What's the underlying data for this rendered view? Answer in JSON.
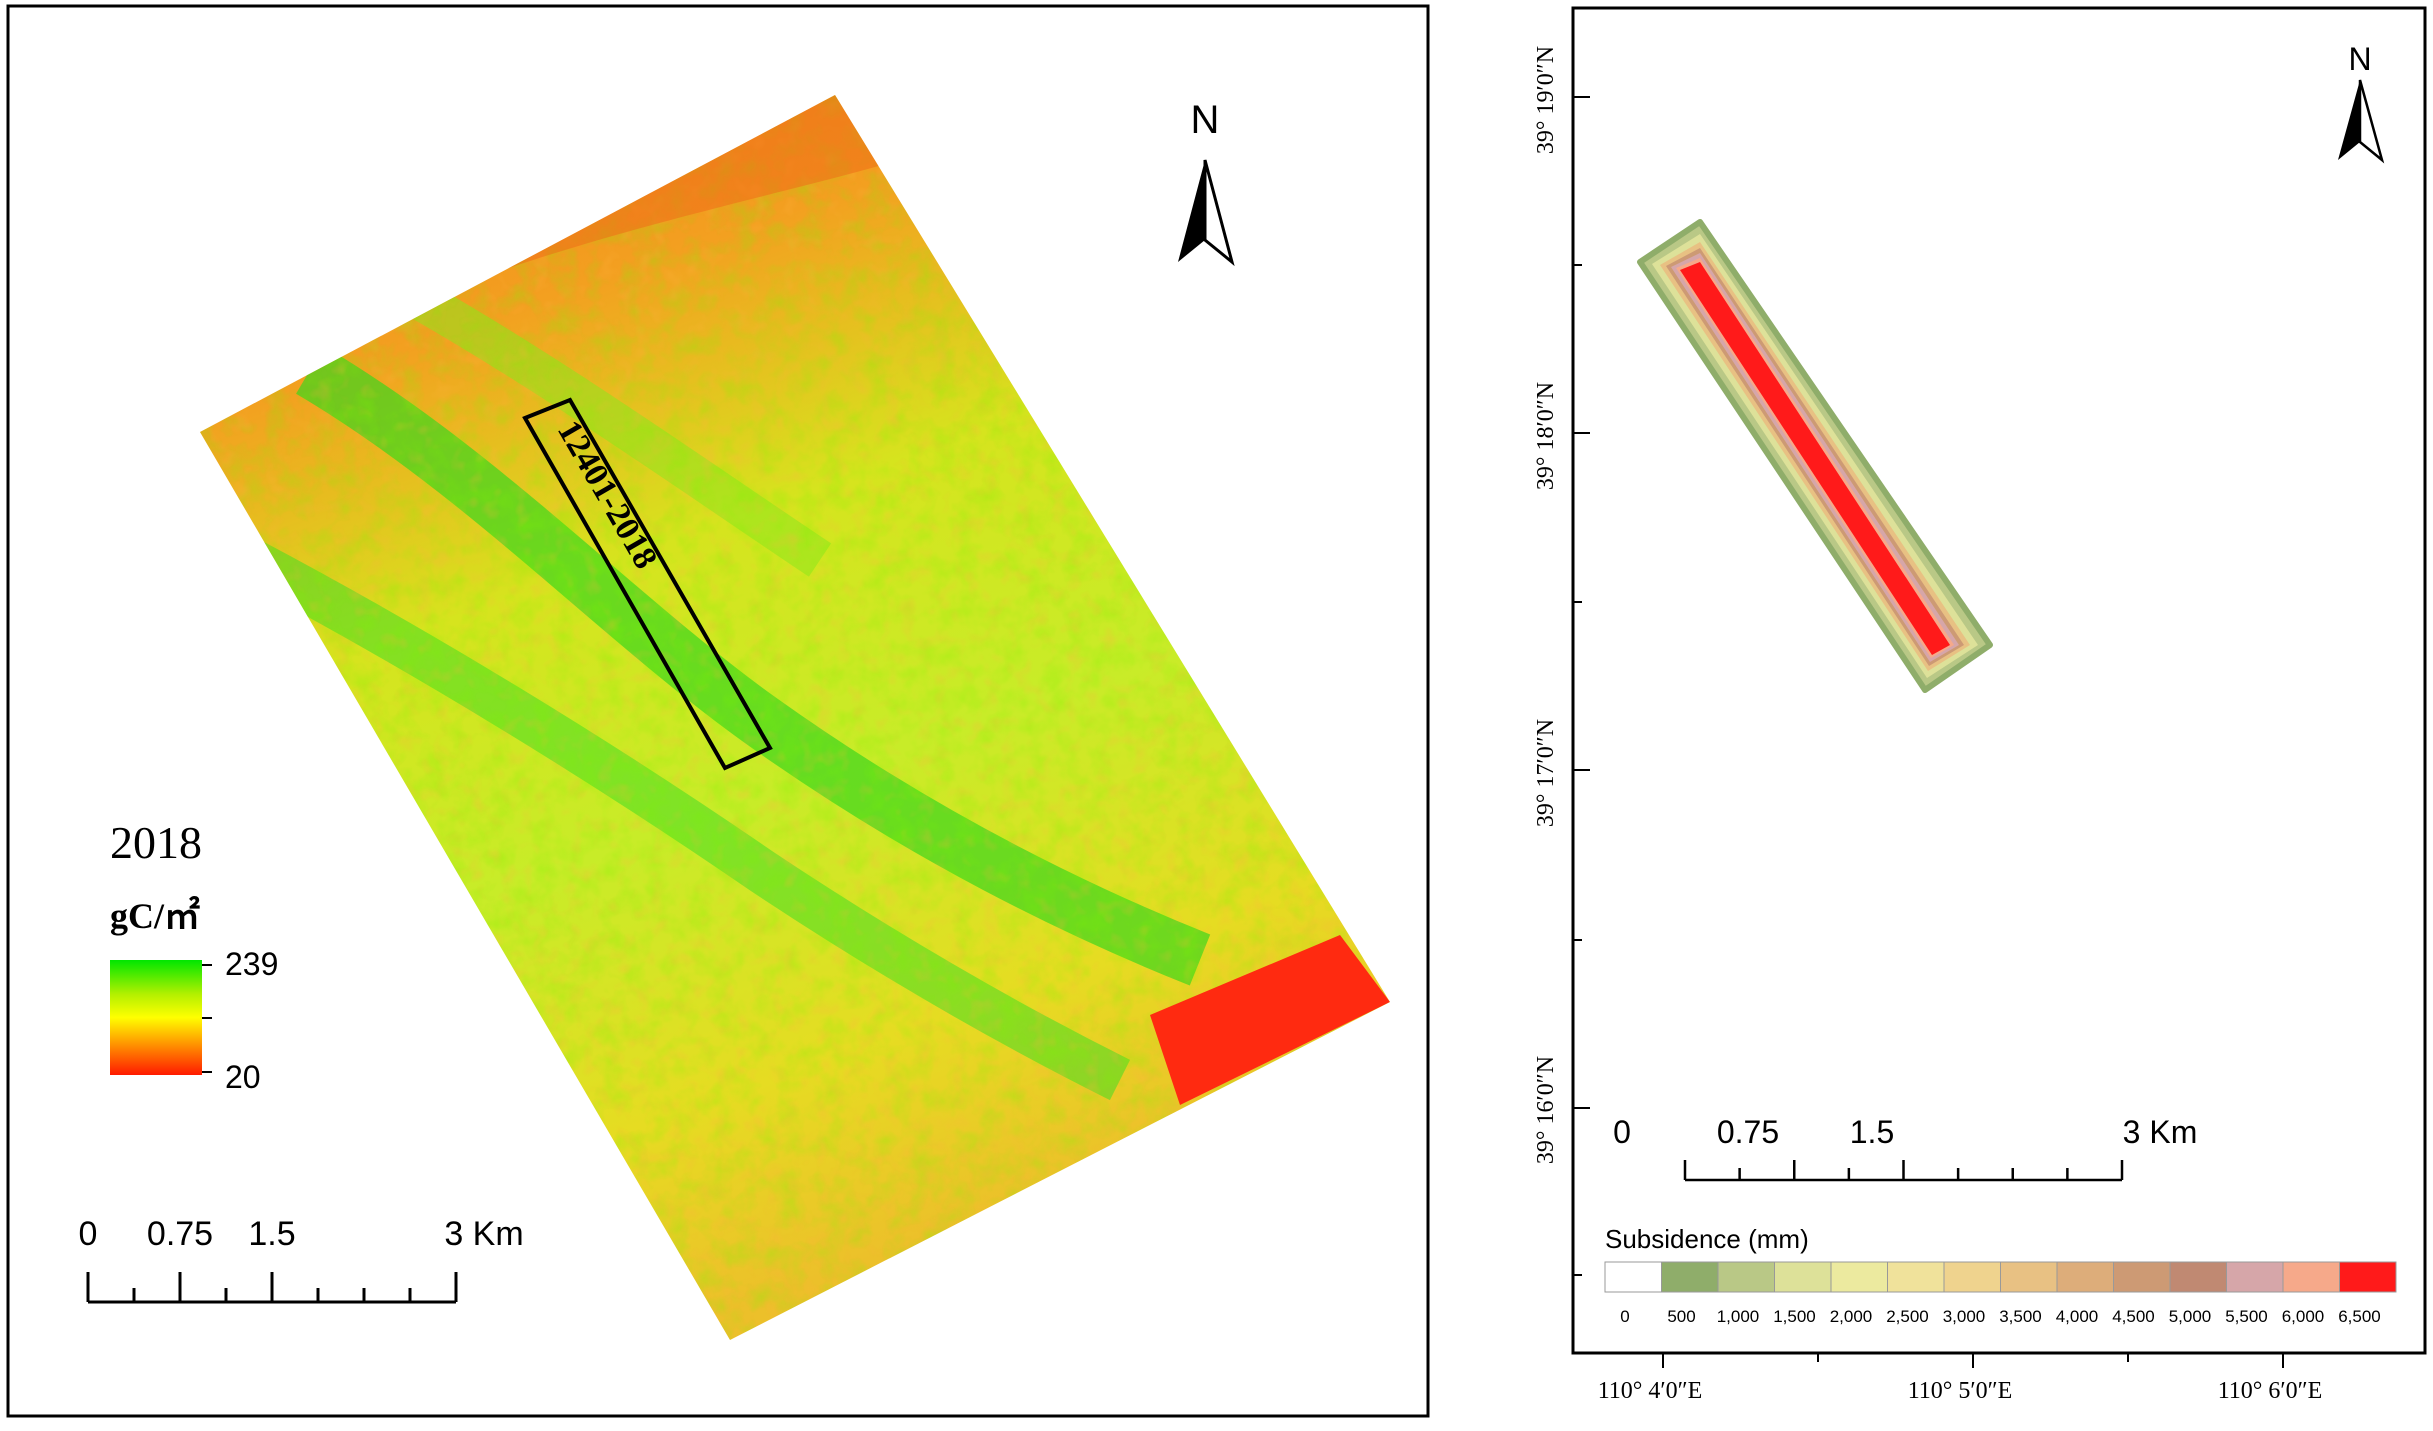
{
  "left_map": {
    "legend": {
      "year": "2018",
      "unit": "gC/㎡",
      "max": "239",
      "min": "20",
      "gradient": [
        "#00e600",
        "#b4f000",
        "#ffff00",
        "#ff8c00",
        "#ff1a00"
      ]
    },
    "panel_label": "12401-2018",
    "north": "N",
    "scale_bar": {
      "ticks": [
        "0",
        "0.75",
        "1.5",
        "3 Km"
      ]
    }
  },
  "right_map": {
    "north": "N",
    "lat_labels": [
      "39° 19′0″N",
      "39° 18′0″N",
      "39° 17′0″N",
      "39° 16′0″N"
    ],
    "lon_labels": [
      "110° 4′0″E",
      "110° 5′0″E",
      "110° 6′0″E"
    ],
    "scale_bar": {
      "ticks": [
        "0",
        "0.75",
        "1.5",
        "3 Km"
      ]
    },
    "legend": {
      "title": "Subsidence (mm)",
      "classes": [
        "0",
        "500",
        "1,000",
        "1,500",
        "2,000",
        "2,500",
        "3,000",
        "3,500",
        "4,000",
        "4,500",
        "5,000",
        "5,500",
        "6,000",
        "6,500"
      ],
      "colors": [
        "#ffffff",
        "#8fad6a",
        "#b9c886",
        "#dde199",
        "#ecea9f",
        "#f0e29b",
        "#efd38e",
        "#e8c183",
        "#ddad7a",
        "#cd9a74",
        "#c08972",
        "#d6a6a9",
        "#f6a98a",
        "#ff1a1a"
      ]
    }
  }
}
